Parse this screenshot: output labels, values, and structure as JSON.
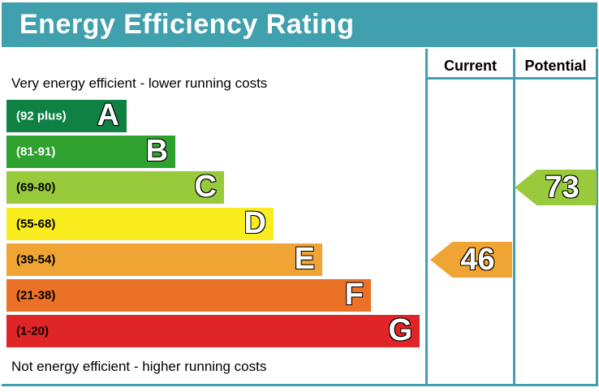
{
  "title": "Energy Efficiency Rating",
  "columns": {
    "current": "Current",
    "potential": "Potential"
  },
  "captions": {
    "top": "Very energy efficient - lower running costs",
    "bottom": "Not energy efficient - higher running costs"
  },
  "theme": {
    "teal": "#40a0ad"
  },
  "bands": [
    {
      "letter": "A",
      "range": "(92 plus)",
      "color": "#0e8143",
      "label_color": "#ffffff"
    },
    {
      "letter": "B",
      "range": "(81-91)",
      "color": "#2fa12f",
      "label_color": "#ffffff"
    },
    {
      "letter": "C",
      "range": "(69-80)",
      "color": "#98ca3c",
      "label_color": "#000000"
    },
    {
      "letter": "D",
      "range": "(55-68)",
      "color": "#f9ec1f",
      "label_color": "#000000"
    },
    {
      "letter": "E",
      "range": "(39-54)",
      "color": "#f0a433",
      "label_color": "#000000"
    },
    {
      "letter": "F",
      "range": "(21-38)",
      "color": "#ea7125",
      "label_color": "#000000"
    },
    {
      "letter": "G",
      "range": "(1-20)",
      "color": "#e02528",
      "label_color": "#000000"
    }
  ],
  "ratings": {
    "current": {
      "value": "46",
      "band": "E",
      "color": "#f0a433"
    },
    "potential": {
      "value": "73",
      "band": "C",
      "color": "#98ca3c"
    }
  },
  "chart_data": {
    "type": "bar",
    "title": "Energy Efficiency Rating",
    "categories": [
      "A (92 plus)",
      "B (81-91)",
      "C (69-80)",
      "D (55-68)",
      "E (39-54)",
      "F (21-38)",
      "G (1-20)"
    ],
    "band_colors": [
      "#0e8143",
      "#2fa12f",
      "#98ca3c",
      "#f9ec1f",
      "#f0a433",
      "#ea7125",
      "#e02528"
    ],
    "series": [
      {
        "name": "Current",
        "value": 46,
        "band": "E"
      },
      {
        "name": "Potential",
        "value": 73,
        "band": "C"
      }
    ],
    "score_range": [
      1,
      100
    ],
    "annotations": [
      "Very energy efficient - lower running costs",
      "Not energy efficient - higher running costs"
    ],
    "legend_position": "top-right-columns",
    "grid": false
  }
}
